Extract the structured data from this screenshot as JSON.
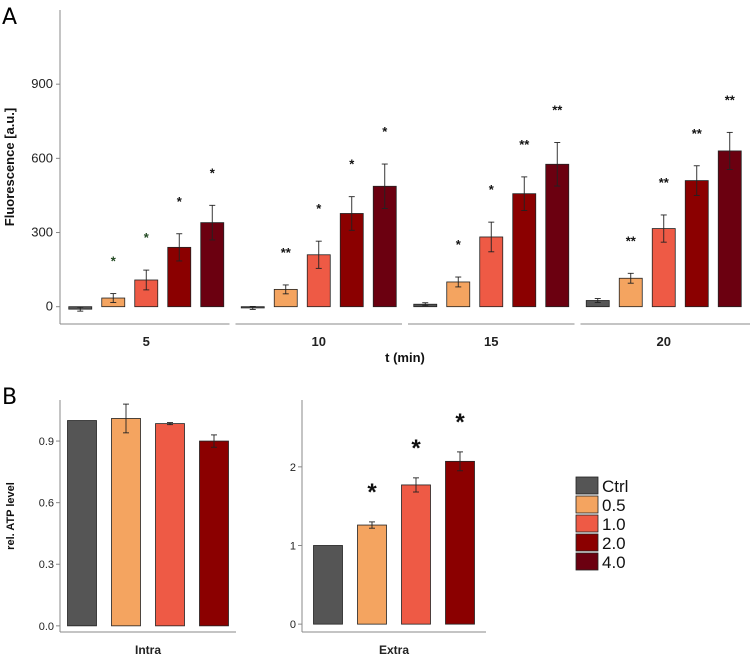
{
  "panels": {
    "a_label": "A",
    "b_label": "B"
  },
  "colors": {
    "Ctrl": "#555555",
    "0.5": "#F4A460",
    "1.0": "#EE5A45",
    "2.0": "#8B0000",
    "4.0": "#6B0010"
  },
  "chart_data": [
    {
      "type": "bar",
      "panel": "A",
      "xlabel": "t (min)",
      "ylabel": "Fluorescence [a.u.]",
      "ylim": [
        -70,
        1200
      ],
      "yticks": [
        0,
        300,
        600,
        900
      ],
      "categories": [
        "5",
        "10",
        "15",
        "20"
      ],
      "series": [
        {
          "name": "Ctrl",
          "values": [
            -10,
            -5,
            10,
            25
          ],
          "errors": [
            8,
            6,
            6,
            8
          ],
          "annotations": [
            "",
            "",
            "",
            ""
          ]
        },
        {
          "name": "0.5",
          "values": [
            35,
            70,
            100,
            115
          ],
          "errors": [
            18,
            18,
            20,
            20
          ],
          "annotations": [
            "*",
            "**",
            "*",
            "**"
          ]
        },
        {
          "name": "1.0",
          "values": [
            108,
            210,
            282,
            316
          ],
          "errors": [
            40,
            55,
            60,
            55
          ],
          "annotations": [
            "*",
            "*",
            "*",
            "**"
          ]
        },
        {
          "name": "2.0",
          "values": [
            240,
            377,
            457,
            510
          ],
          "errors": [
            55,
            68,
            68,
            60
          ],
          "annotations": [
            "*",
            "*",
            "**",
            "**"
          ]
        },
        {
          "name": "4.0",
          "values": [
            340,
            487,
            576,
            630
          ],
          "errors": [
            70,
            90,
            88,
            75
          ],
          "annotations": [
            "*",
            "*",
            "**",
            "**"
          ]
        }
      ]
    },
    {
      "type": "bar",
      "panel": "B-left",
      "ylabel": "rel. ATP level",
      "ylim": [
        -0.03,
        1.1
      ],
      "yticks": [
        0.0,
        0.3,
        0.6,
        0.9
      ],
      "ytick_labels": [
        "0.0",
        "0.3",
        "0.6",
        "0.9"
      ],
      "categories": [
        "Intra"
      ],
      "series": [
        {
          "name": "Ctrl",
          "values": [
            1.0
          ],
          "errors": [
            0
          ]
        },
        {
          "name": "0.5",
          "values": [
            1.01
          ],
          "errors": [
            0.07
          ]
        },
        {
          "name": "1.0",
          "values": [
            0.985
          ],
          "errors": [
            0.005
          ]
        },
        {
          "name": "2.0",
          "values": [
            0.9
          ],
          "errors": [
            0.03
          ]
        }
      ]
    },
    {
      "type": "bar",
      "panel": "B-right",
      "ylim": [
        -0.1,
        2.85
      ],
      "yticks": [
        0,
        1,
        2
      ],
      "ytick_labels": [
        "0",
        "1",
        "2"
      ],
      "categories": [
        "Extra"
      ],
      "series": [
        {
          "name": "Ctrl",
          "values": [
            1.0
          ],
          "errors": [
            0
          ],
          "annotations": [
            ""
          ]
        },
        {
          "name": "0.5",
          "values": [
            1.26
          ],
          "errors": [
            0.04
          ],
          "annotations": [
            "*"
          ]
        },
        {
          "name": "1.0",
          "values": [
            1.77
          ],
          "errors": [
            0.09
          ],
          "annotations": [
            "*"
          ]
        },
        {
          "name": "2.0",
          "values": [
            2.07
          ],
          "errors": [
            0.12
          ],
          "annotations": [
            "*"
          ]
        }
      ]
    }
  ],
  "legend": {
    "entries": [
      "Ctrl",
      "0.5",
      "1.0",
      "2.0",
      "4.0"
    ],
    "placement": "right"
  }
}
